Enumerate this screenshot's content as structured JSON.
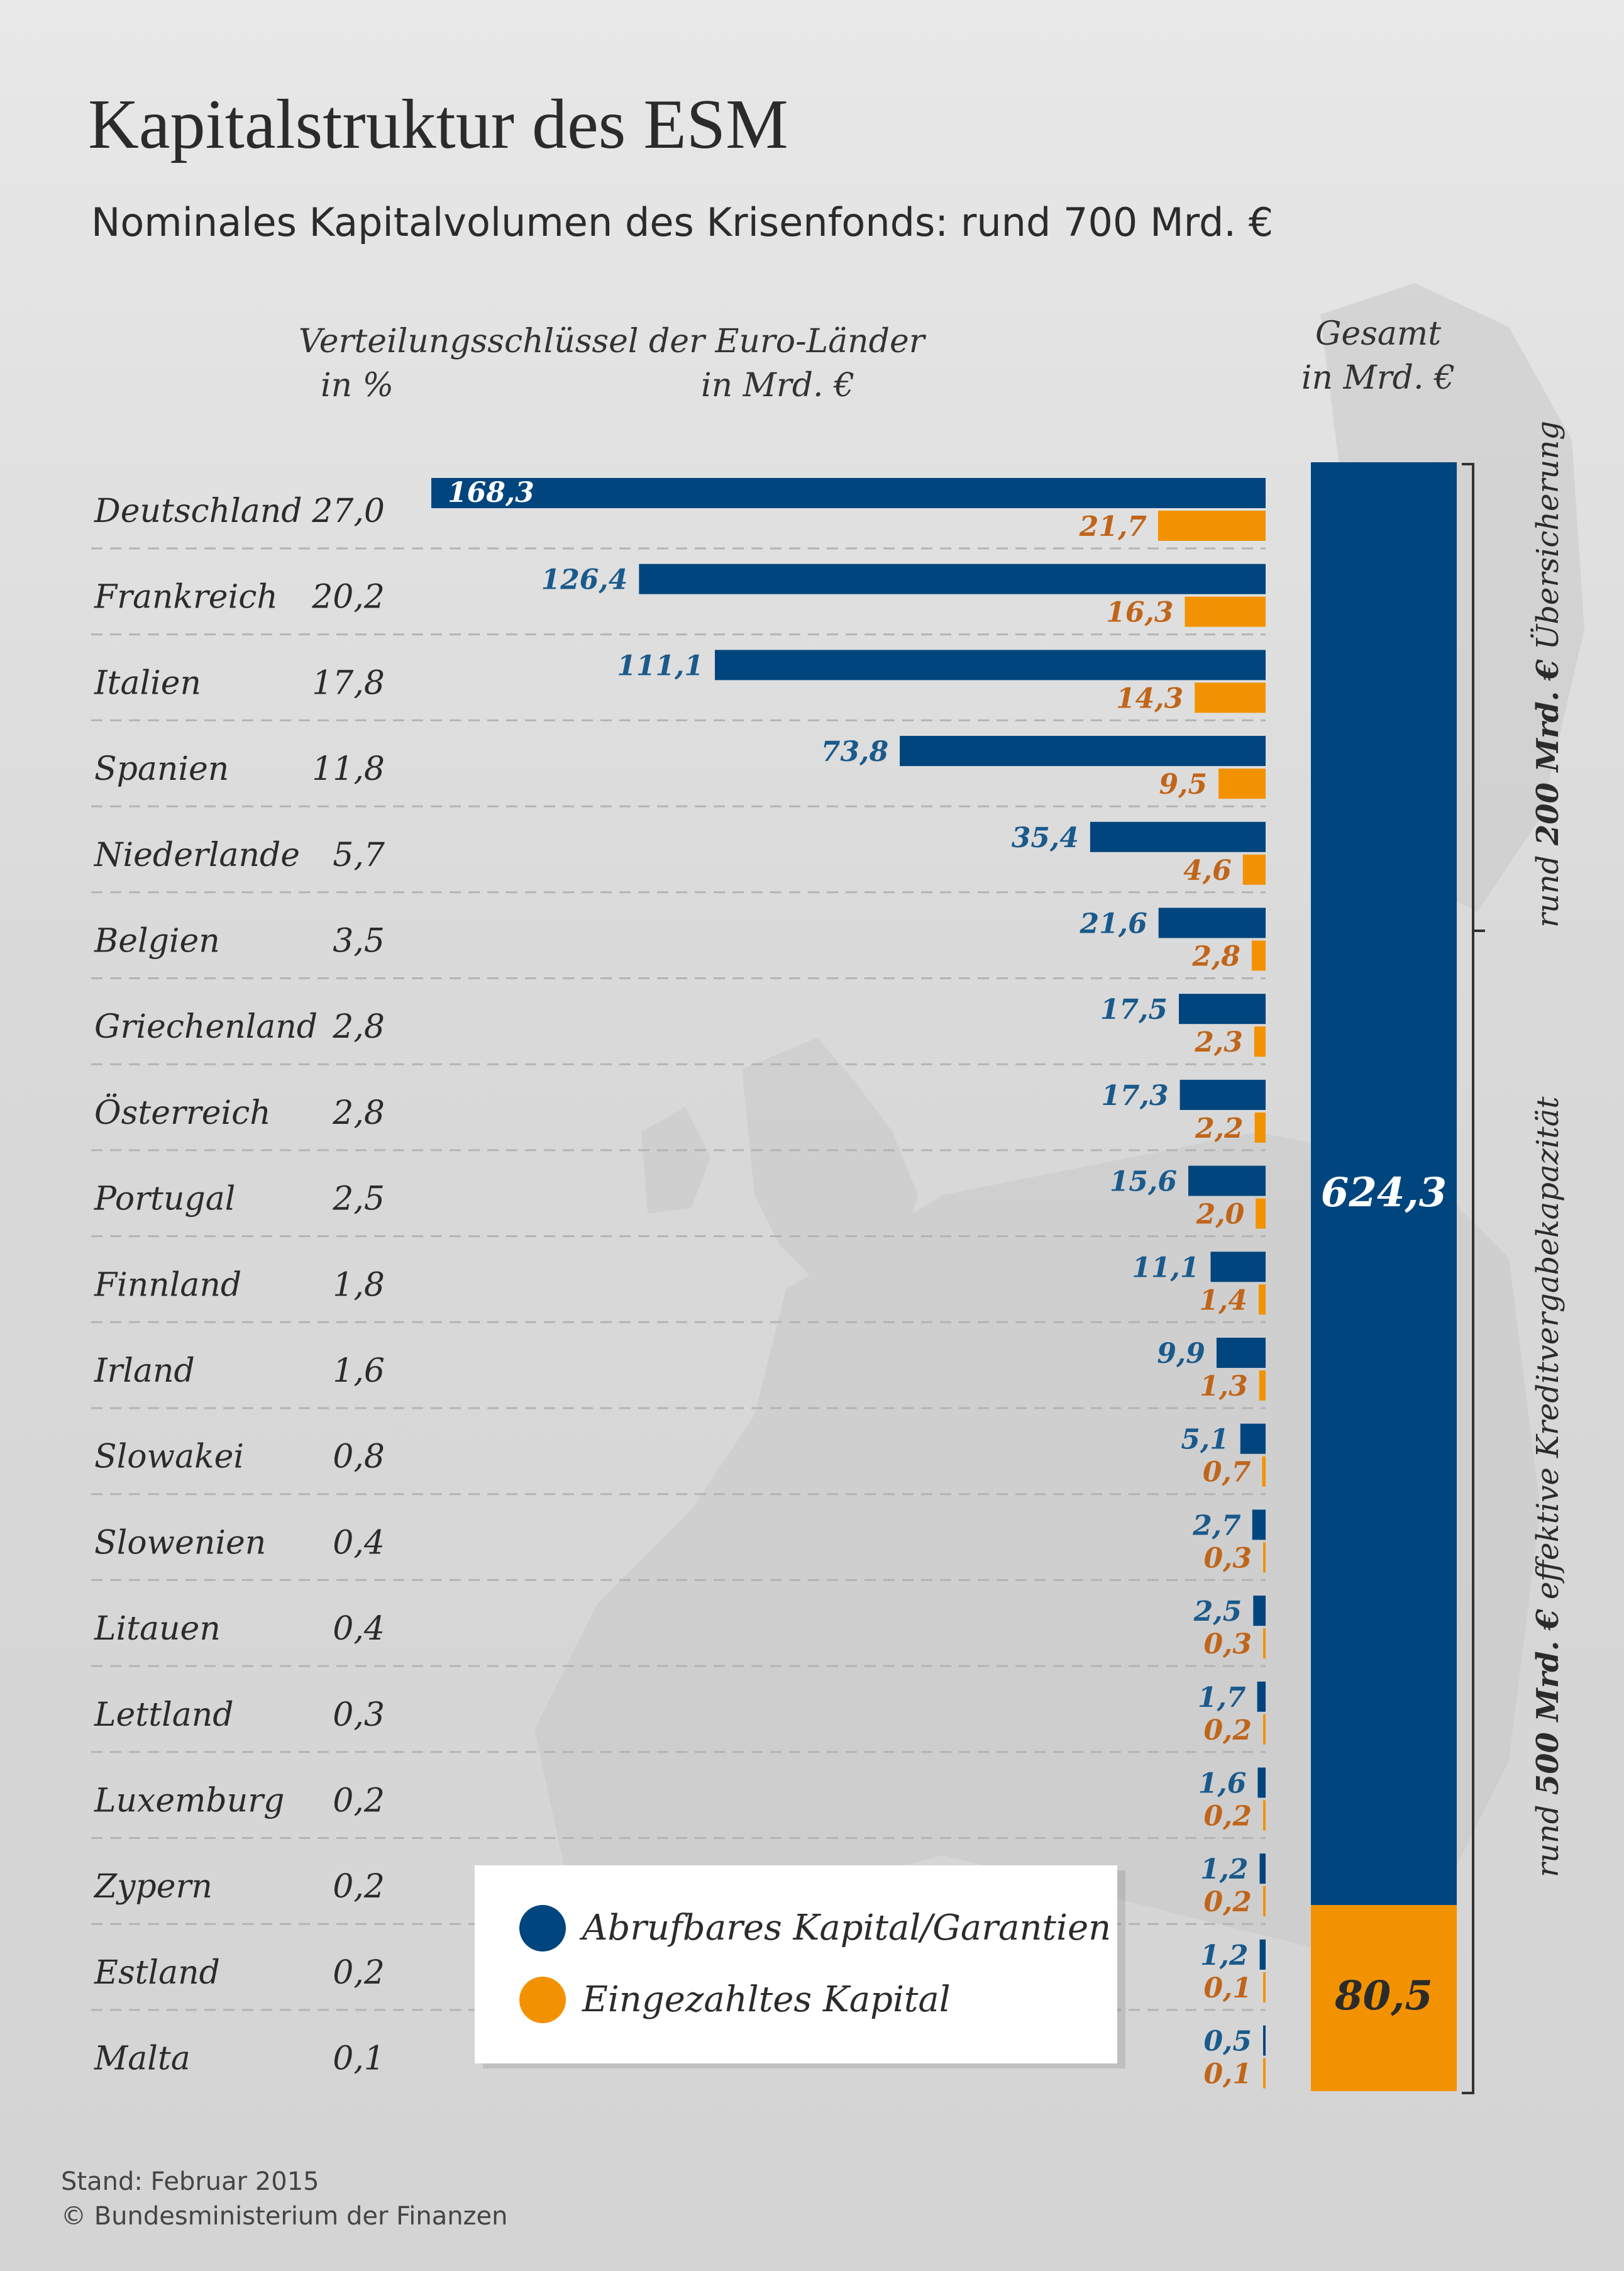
{
  "title": "Kapitalstruktur des ESM",
  "subtitle": "Nominales Kapitalvolumen des Krisenfonds: rund 700 Mrd. €",
  "headers": {
    "distribution": "Verteilungsschlüssel der Euro-Länder",
    "pct": "in %",
    "mrd": "in Mrd. €",
    "total_1": "Gesamt",
    "total_2": "in Mrd. €"
  },
  "side_labels": {
    "top_prefix": "rund ",
    "top_bold": "200 Mrd. €",
    "top_suffix": " Übersicherung",
    "bottom_prefix": "rund ",
    "bottom_bold": "500 Mrd. €",
    "bottom_suffix": " effektive Kreditvergabekapazität"
  },
  "legend": {
    "callable": "Abrufbares Kapital/Garantien",
    "paid": "Eingezahltes Kapital"
  },
  "footer": {
    "line1": "Stand: Februar 2015",
    "line2": "© Bundesministerium der Finanzen"
  },
  "colors": {
    "callable": "#00457e",
    "paid": "#f39200",
    "callable_label": "#1a5a8c",
    "paid_label": "#c0651a"
  },
  "chart_data": {
    "type": "bar",
    "orientation": "horizontal",
    "categories": [
      "Deutschland",
      "Frankreich",
      "Italien",
      "Spanien",
      "Niederlande",
      "Belgien",
      "Griechenland",
      "Österreich",
      "Portugal",
      "Finnland",
      "Irland",
      "Slowakei",
      "Slowenien",
      "Litauen",
      "Lettland",
      "Luxemburg",
      "Zypern",
      "Estland",
      "Malta"
    ],
    "key_pct": [
      "27,0",
      "20,2",
      "17,8",
      "11,8",
      "5,7",
      "3,5",
      "2,8",
      "2,8",
      "2,5",
      "1,8",
      "1,6",
      "0,8",
      "0,4",
      "0,4",
      "0,3",
      "0,2",
      "0,2",
      "0,2",
      "0,1"
    ],
    "series": [
      {
        "name": "Abrufbares Kapital/Garantien",
        "values": [
          168.3,
          126.4,
          111.1,
          73.8,
          35.4,
          21.6,
          17.5,
          17.3,
          15.6,
          11.1,
          9.9,
          5.1,
          2.7,
          2.5,
          1.7,
          1.6,
          1.2,
          1.2,
          0.5
        ]
      },
      {
        "name": "Eingezahltes Kapital",
        "values": [
          21.7,
          16.3,
          14.3,
          9.5,
          4.6,
          2.8,
          2.3,
          2.2,
          2.0,
          1.4,
          1.3,
          0.7,
          0.3,
          0.3,
          0.2,
          0.2,
          0.2,
          0.1,
          0.1
        ]
      }
    ],
    "totals": {
      "callable": 624.3,
      "paid": 80.5,
      "callable_label": "624,3",
      "paid_label": "80,5"
    }
  }
}
